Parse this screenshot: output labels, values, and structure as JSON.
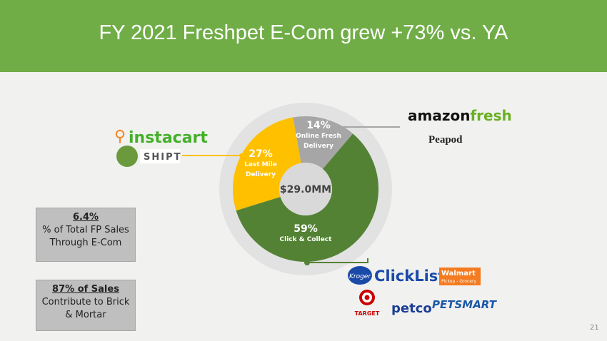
{
  "chart_data": {
    "type": "donut",
    "title": "FY 2021 Freshpet E-Com grew +73% vs. YA",
    "categories": [
      "Online Fresh Delivery",
      "Click & Collect",
      "Last Mile Delivery"
    ],
    "values": [
      14,
      59,
      27
    ],
    "value_labels": [
      "14%",
      "59%",
      "27%"
    ],
    "colors": [
      "#a6a6a6",
      "#548235",
      "#ffc000"
    ],
    "center_label": "$29.0MM"
  },
  "callouts": [
    {
      "headline": "6.4%",
      "lines": [
        "% of Total FP Sales",
        "Through E-Com"
      ]
    },
    {
      "headline": "87% of Sales",
      "lines": [
        "Contribute to Brick",
        "& Mortar"
      ]
    }
  ],
  "retailers": {
    "last_mile": [
      "instacart",
      "SHIPT"
    ],
    "online": [
      "amazon",
      "fresh",
      "Peapod"
    ],
    "click_collect": [
      "Kroger",
      "ClickList",
      "Walmart",
      "Pickup - Grocery",
      "TARGET",
      "petco",
      "PETSMART"
    ]
  },
  "page_number": "21"
}
